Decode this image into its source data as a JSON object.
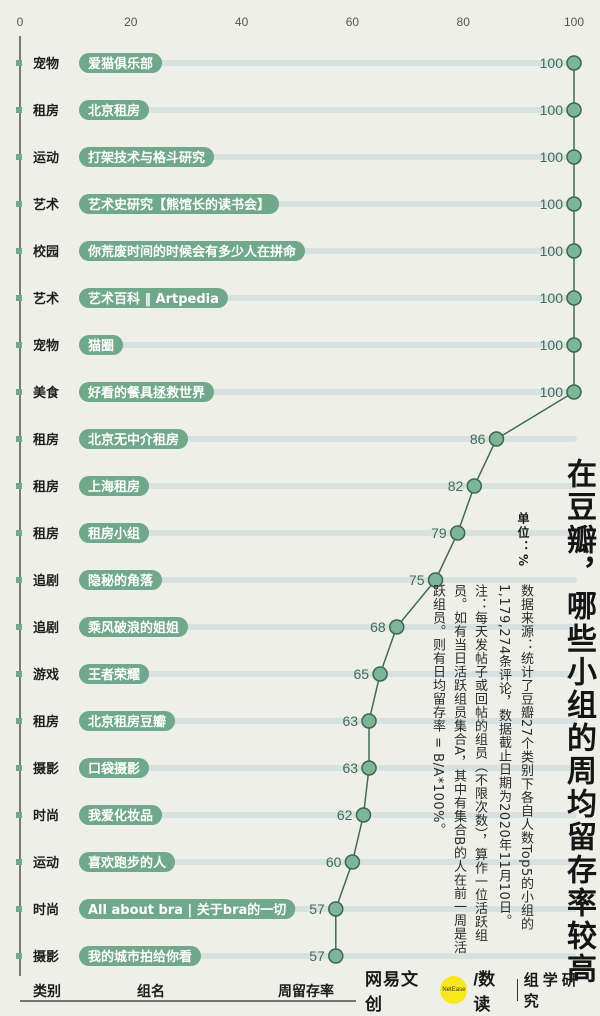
{
  "chart_data": {
    "type": "bar",
    "title": "在豆瓣，哪些小组的周均留存率较高",
    "unit_label": "单位：%",
    "xlim": [
      0,
      100
    ],
    "x_ticks": [
      0,
      20,
      40,
      60,
      80,
      100
    ],
    "column_headers": {
      "category": "类别",
      "group": "组名",
      "value": "周留存率"
    },
    "rows": [
      {
        "category": "宠物",
        "group": "爱猫俱乐部",
        "value": 100
      },
      {
        "category": "租房",
        "group": "北京租房",
        "value": 100
      },
      {
        "category": "运动",
        "group": "打架技术与格斗研究",
        "value": 100
      },
      {
        "category": "艺术",
        "group": "艺术史研究【熊馆长的读书会】",
        "value": 100
      },
      {
        "category": "校园",
        "group": "你荒废时间的时候会有多少人在拼命",
        "value": 100
      },
      {
        "category": "艺术",
        "group": "艺术百科 ‖ Artpedia",
        "value": 100
      },
      {
        "category": "宠物",
        "group": "猫圈",
        "value": 100
      },
      {
        "category": "美食",
        "group": "好看的餐具拯救世界",
        "value": 100
      },
      {
        "category": "租房",
        "group": "北京无中介租房",
        "value": 86
      },
      {
        "category": "租房",
        "group": "上海租房",
        "value": 82
      },
      {
        "category": "租房",
        "group": "租房小组",
        "value": 79
      },
      {
        "category": "追剧",
        "group": "隐秘的角落",
        "value": 75
      },
      {
        "category": "追剧",
        "group": "乘风破浪的姐姐",
        "value": 68
      },
      {
        "category": "游戏",
        "group": "王者荣耀",
        "value": 65
      },
      {
        "category": "租房",
        "group": "北京租房豆瓣",
        "value": 63
      },
      {
        "category": "摄影",
        "group": "口袋摄影",
        "value": 63
      },
      {
        "category": "时尚",
        "group": "我爱化妆品",
        "value": 62
      },
      {
        "category": "运动",
        "group": "喜欢跑步的人",
        "value": 60
      },
      {
        "category": "时尚",
        "group": "All about bra | 关于bra的一切",
        "value": 57
      },
      {
        "category": "摄影",
        "group": "我的城市拍给你看",
        "value": 57
      }
    ],
    "colors": {
      "track": "#d7e1e0",
      "pill": "#6fa88a",
      "pill_text": "#ffffff",
      "line": "#3f6b57",
      "dot_fill": "#7cb598",
      "dot_stroke": "#3b6652",
      "value_text": "#3f6b57",
      "marker": "#6fa88a"
    }
  },
  "source_text": "数据来源：统计了豆瓣27个类别下各自人数Top5的小组的1,179,274条评论，数据截止日期为2020年11月10日。",
  "note_text": "注：每天发帖子或回帖的组员（不限次数），算作一位活跃组员。如有当日活跃组员集合A，其中有集合B的人在前一周是活跃组员。则有日均留存率 = B/A*100%。",
  "brand": {
    "text1": "网易文创",
    "circle": "NetEase",
    "text2": "/数读",
    "text3": "组学研究"
  }
}
